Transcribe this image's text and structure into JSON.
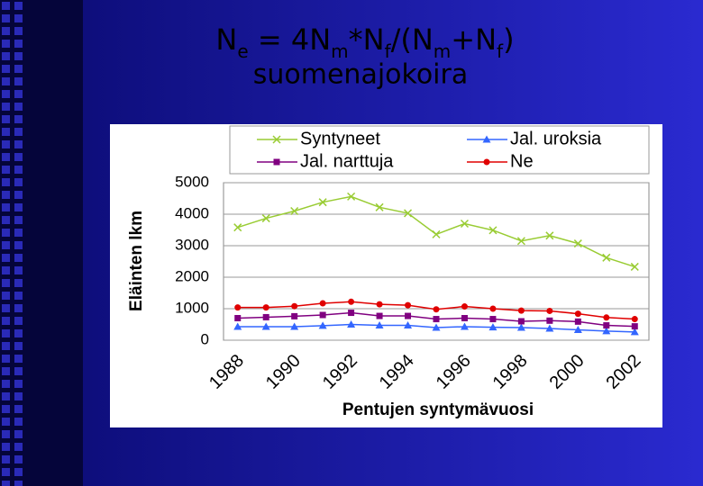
{
  "title": {
    "segments": [
      {
        "text": "N"
      },
      {
        "text": "e",
        "sub": true
      },
      {
        "text": " = 4N"
      },
      {
        "text": "m",
        "sub": true
      },
      {
        "text": "*N"
      },
      {
        "text": "f",
        "sub": true
      },
      {
        "text": "/(N"
      },
      {
        "text": "m",
        "sub": true
      },
      {
        "text": "+N"
      },
      {
        "text": "f",
        "sub": true
      },
      {
        "text": ")"
      }
    ],
    "subtitle": "suomenajokoira"
  },
  "chart_data": {
    "type": "line",
    "xlabel": "Pentujen syntymävuosi",
    "ylabel": "Eläinten lkm",
    "categories": [
      "1988",
      null,
      "1990",
      null,
      "1992",
      null,
      "1994",
      null,
      "1996",
      null,
      "1998",
      null,
      "2000",
      null,
      "2002"
    ],
    "series": [
      {
        "name": "Syntyneet",
        "color": "#99cc33",
        "marker": "x",
        "values": [
          3580,
          3870,
          4100,
          4380,
          4560,
          4220,
          4030,
          3360,
          3700,
          3490,
          3150,
          3320,
          3070,
          2620,
          2330
        ]
      },
      {
        "name": "Jal. uroksia",
        "color": "#3366ff",
        "marker": "triangle",
        "values": [
          430,
          430,
          430,
          460,
          500,
          470,
          470,
          400,
          430,
          410,
          400,
          370,
          330,
          290,
          260
        ]
      },
      {
        "name": "Jal. narttuja",
        "color": "#800080",
        "marker": "square",
        "values": [
          700,
          730,
          760,
          800,
          870,
          770,
          770,
          670,
          700,
          670,
          600,
          620,
          590,
          470,
          440
        ]
      },
      {
        "name": "Ne",
        "color": "#e00000",
        "marker": "circle",
        "values": [
          1040,
          1040,
          1080,
          1170,
          1220,
          1140,
          1110,
          980,
          1070,
          1000,
          940,
          930,
          840,
          720,
          670
        ]
      }
    ],
    "ylim": [
      0,
      5000
    ],
    "yticks": [
      0,
      1000,
      2000,
      3000,
      4000,
      5000
    ],
    "grid": true
  }
}
